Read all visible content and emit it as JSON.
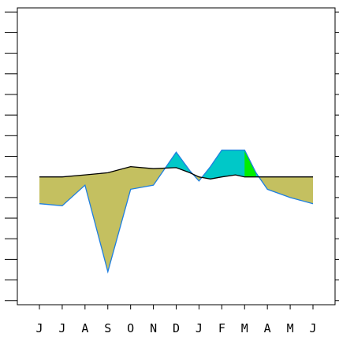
{
  "chart_data": {
    "type": "line",
    "title": "",
    "xlabel": "",
    "ylabel": "",
    "categories": [
      "J",
      "J",
      "A",
      "S",
      "O",
      "N",
      "D",
      "J",
      "F",
      "M",
      "A",
      "M",
      "J"
    ],
    "x": [
      0,
      1,
      2,
      3,
      4,
      5,
      6,
      6.6,
      7,
      7.5,
      8,
      8.6,
      9,
      9.5,
      10,
      11,
      12
    ],
    "series": [
      {
        "role": "reference",
        "color": "#000000",
        "values": [
          0.0,
          0.0,
          0.1,
          0.2,
          0.5,
          0.4,
          0.45,
          0.2,
          0.0,
          -0.1,
          0.0,
          0.1,
          0.0,
          0.0,
          0.0,
          0.0,
          0.0
        ]
      },
      {
        "role": "observed",
        "color": "#1f7fe0",
        "values": [
          -1.3,
          -1.4,
          -0.4,
          -4.6,
          -0.6,
          -0.4,
          1.2,
          0.3,
          -0.2,
          0.5,
          1.3,
          1.3,
          1.3,
          0.2,
          -0.6,
          -1.0,
          -1.3
        ]
      }
    ],
    "fills": {
      "wet_color": "#00c8c8",
      "very_wet_color": "#00ee00",
      "dry_color": "#c4c060"
    },
    "ylim": [
      -6.2,
      8.2
    ],
    "y_ticks": [
      -6,
      -5,
      -4,
      -3,
      -2,
      -1,
      0,
      1,
      2,
      3,
      4,
      5,
      6,
      7,
      8
    ],
    "grid": false,
    "legend": "none"
  }
}
